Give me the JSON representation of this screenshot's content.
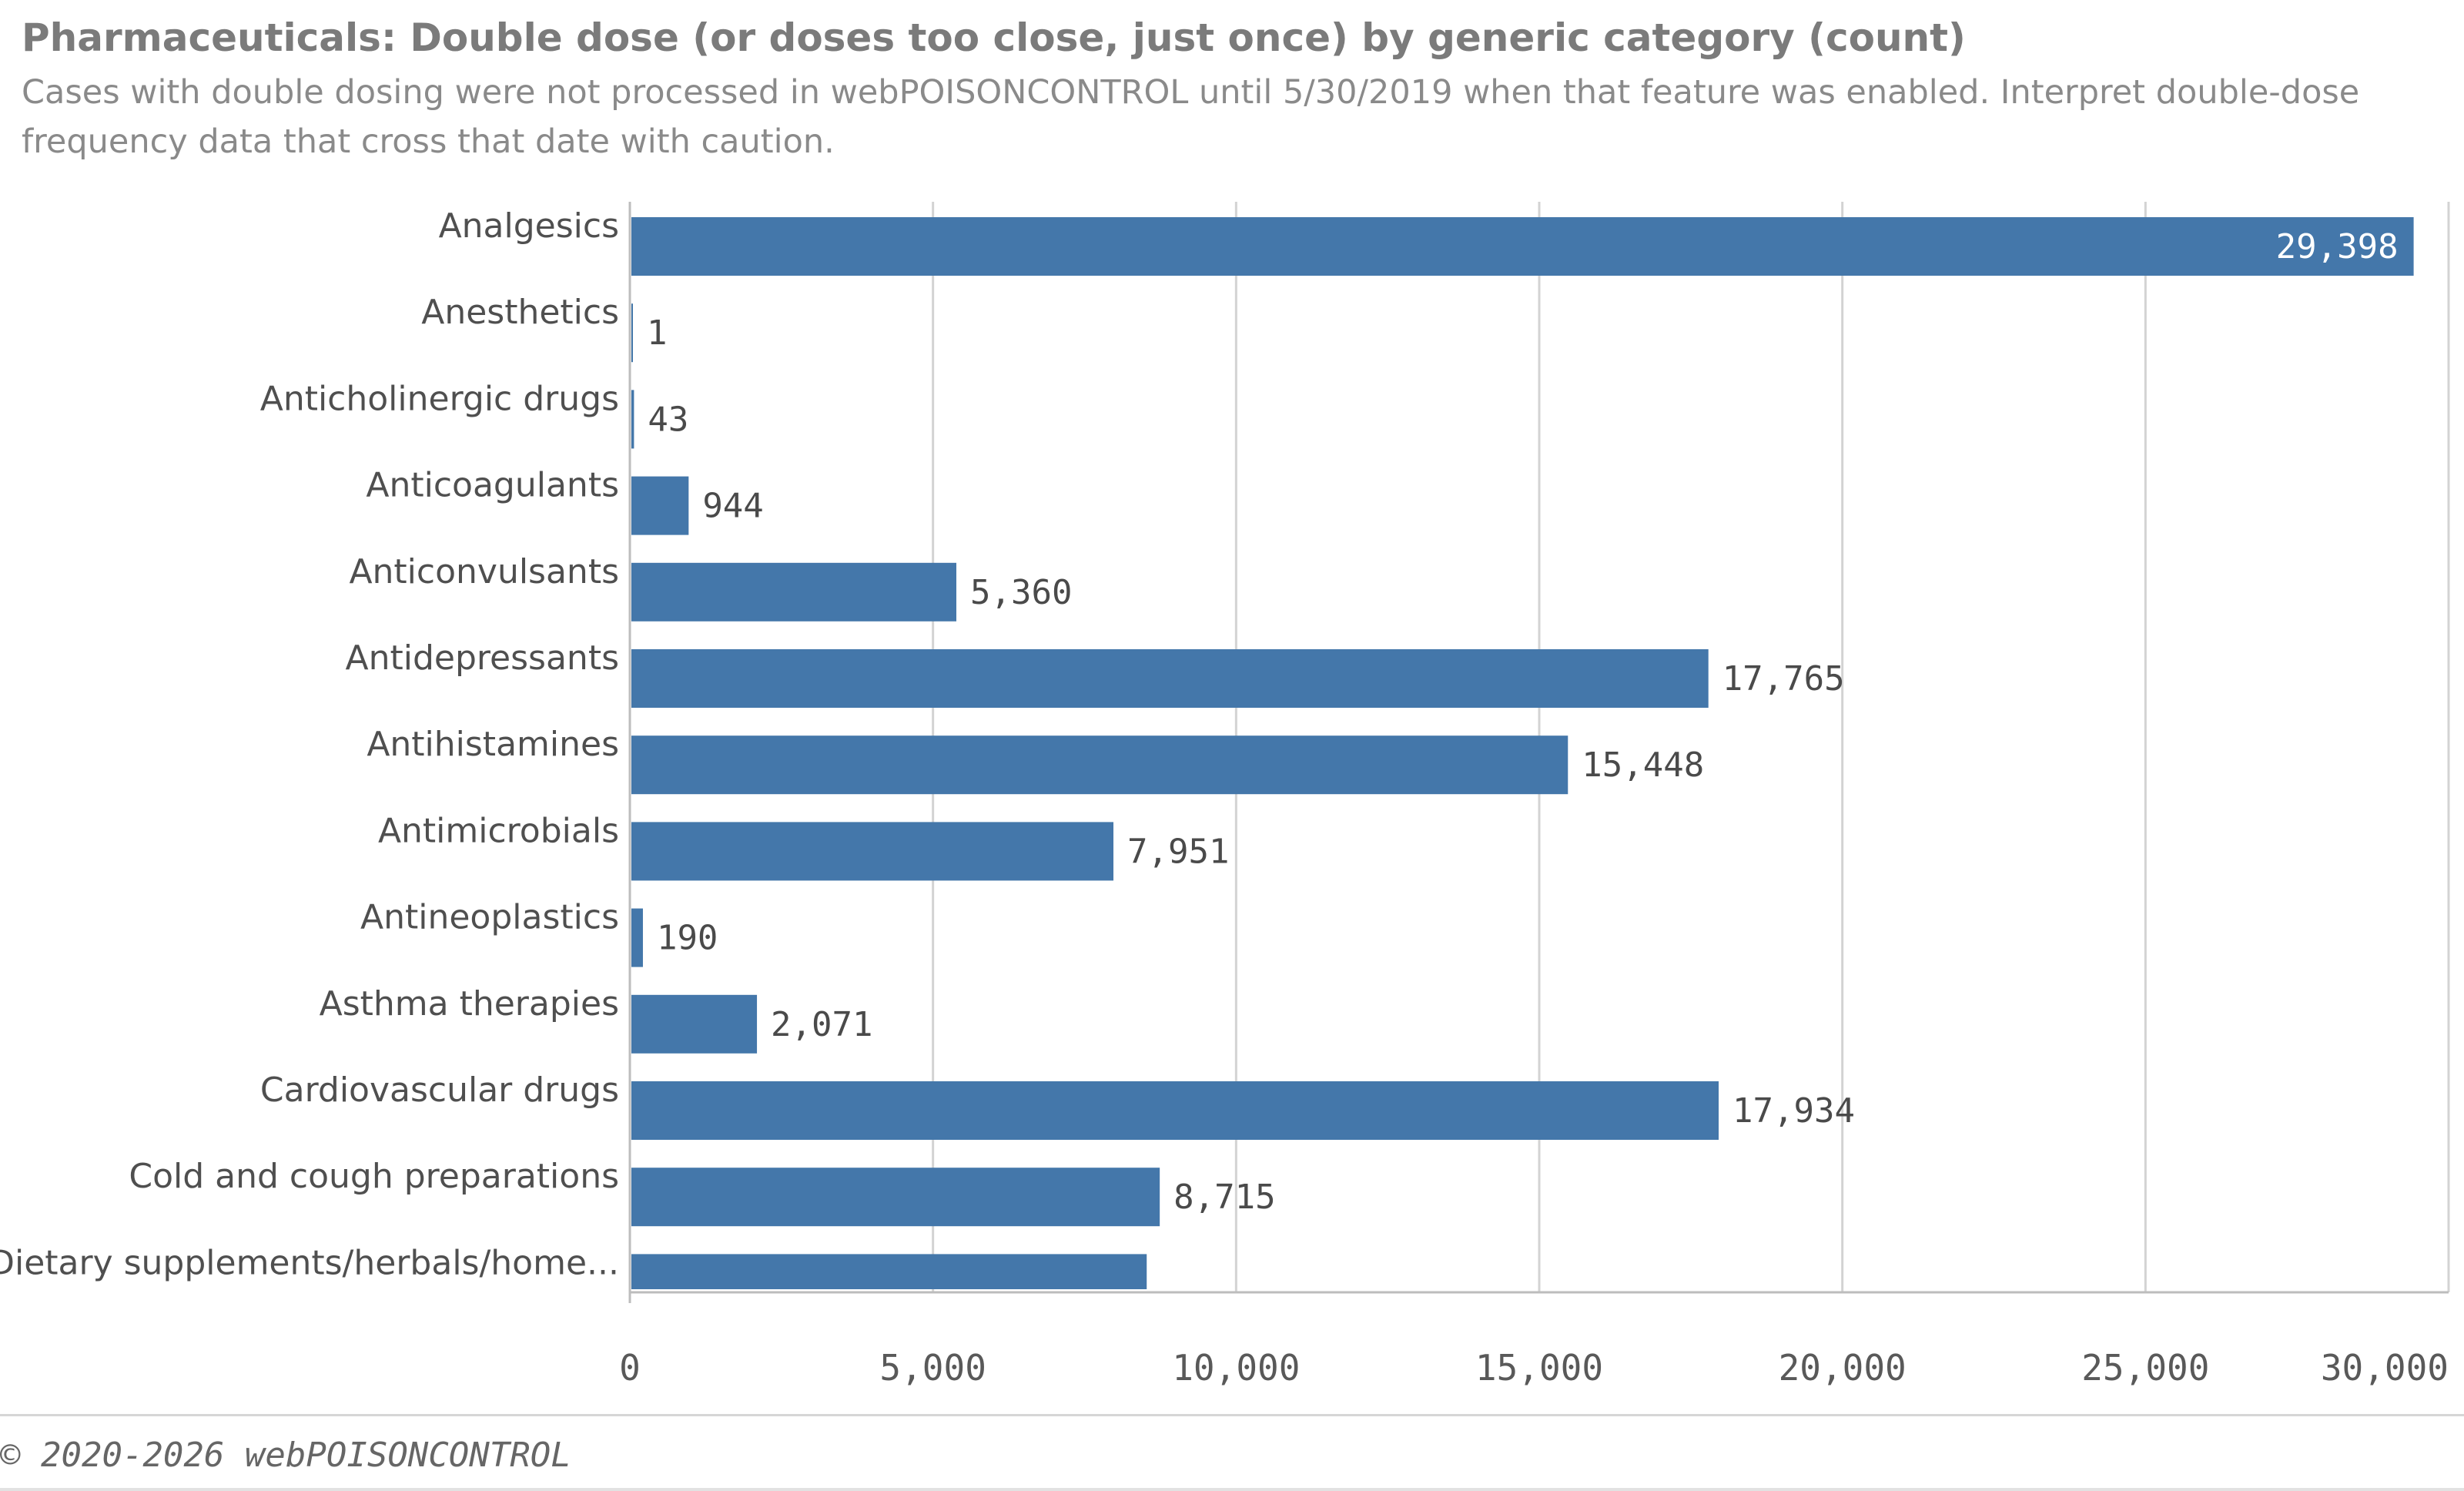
{
  "header": {
    "title": "Pharmaceuticals: Double dose (or doses too close, just once) by generic category (count)",
    "subtitle": "Cases with double dosing were not processed in webPOISONCONTROL until 5/30/2019 when that feature was enabled. Interpret double-dose frequency data that cross that date with caution."
  },
  "chart_data": {
    "type": "bar",
    "orientation": "horizontal",
    "categories": [
      "Analgesics",
      "Anesthetics",
      "Anticholinergic drugs",
      "Anticoagulants",
      "Anticonvulsants",
      "Antidepressants",
      "Antihistamines",
      "Antimicrobials",
      "Antineoplastics",
      "Asthma therapies",
      "Cardiovascular drugs",
      "Cold and cough preparations",
      "Dietary supplements/herbals/home..."
    ],
    "values": [
      29398,
      1,
      43,
      944,
      5360,
      17765,
      15448,
      7951,
      190,
      2071,
      17934,
      8715,
      8500
    ],
    "data_labels": [
      "29,398",
      "1",
      "43",
      "944",
      "5,360",
      "17,765",
      "15,448",
      "7,951",
      "190",
      "2,071",
      "17,934",
      "8,715",
      ""
    ],
    "xlim": [
      0,
      30000
    ],
    "xticks": [
      0,
      5000,
      10000,
      15000,
      20000,
      25000,
      30000
    ],
    "xtick_labels": [
      "0",
      "5,000",
      "10,000",
      "15,000",
      "20,000",
      "25,000",
      "30,000"
    ],
    "grid": true,
    "bar_color": "#4477aa",
    "xlabel": "",
    "ylabel": ""
  },
  "footer": {
    "copyright": "© 2020-2026 webPOISONCONTROL"
  }
}
